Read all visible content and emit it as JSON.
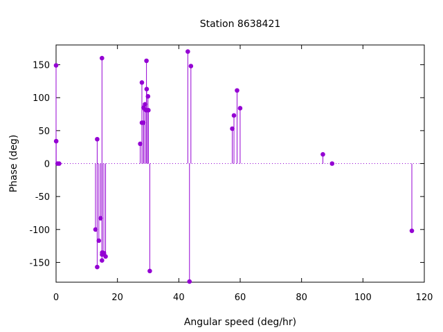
{
  "chart_data": {
    "type": "scatter",
    "style": "impulses-with-points",
    "title": "Station 8638421",
    "xlabel": "Angular speed (deg/hr)",
    "ylabel": "Phase (deg)",
    "xlim": [
      0,
      120
    ],
    "ylim": [
      -180,
      180
    ],
    "xticks": [
      0,
      20,
      40,
      60,
      80,
      100,
      120
    ],
    "yticks": [
      -150,
      -100,
      -50,
      0,
      50,
      100,
      150
    ],
    "zero_line": true,
    "grid": false,
    "legend": "none",
    "color": "#9400d3",
    "series": [
      {
        "points": [
          [
            0.0,
            149
          ],
          [
            0.04,
            34
          ],
          [
            0.5,
            0
          ],
          [
            1.0,
            0
          ],
          [
            12.85,
            -100
          ],
          [
            13.4,
            -157
          ],
          [
            13.4,
            37
          ],
          [
            13.94,
            -117
          ],
          [
            14.5,
            -83
          ],
          [
            14.96,
            160
          ],
          [
            14.96,
            -147
          ],
          [
            15.0,
            -138
          ],
          [
            15.04,
            -135
          ],
          [
            15.59,
            -136
          ],
          [
            16.14,
            -141
          ],
          [
            27.42,
            30
          ],
          [
            27.97,
            123
          ],
          [
            27.97,
            62
          ],
          [
            28.44,
            62
          ],
          [
            28.51,
            85
          ],
          [
            28.99,
            82
          ],
          [
            29.0,
            90
          ],
          [
            29.46,
            156
          ],
          [
            29.46,
            81
          ],
          [
            29.53,
            113
          ],
          [
            29.96,
            102
          ],
          [
            30.08,
            81
          ],
          [
            30.54,
            -163
          ],
          [
            42.93,
            170
          ],
          [
            43.48,
            -179
          ],
          [
            43.94,
            148
          ],
          [
            57.42,
            53
          ],
          [
            57.97,
            73
          ],
          [
            58.98,
            111
          ],
          [
            59.98,
            84
          ],
          [
            86.95,
            14
          ],
          [
            89.95,
            0
          ],
          [
            115.94,
            -102
          ]
        ]
      }
    ],
    "tick_labels": {
      "x": [
        "0",
        "20",
        "40",
        "60",
        "80",
        "100",
        "120"
      ],
      "y": [
        "-150",
        "-100",
        "-50",
        "0",
        "50",
        "100",
        "150"
      ]
    }
  }
}
